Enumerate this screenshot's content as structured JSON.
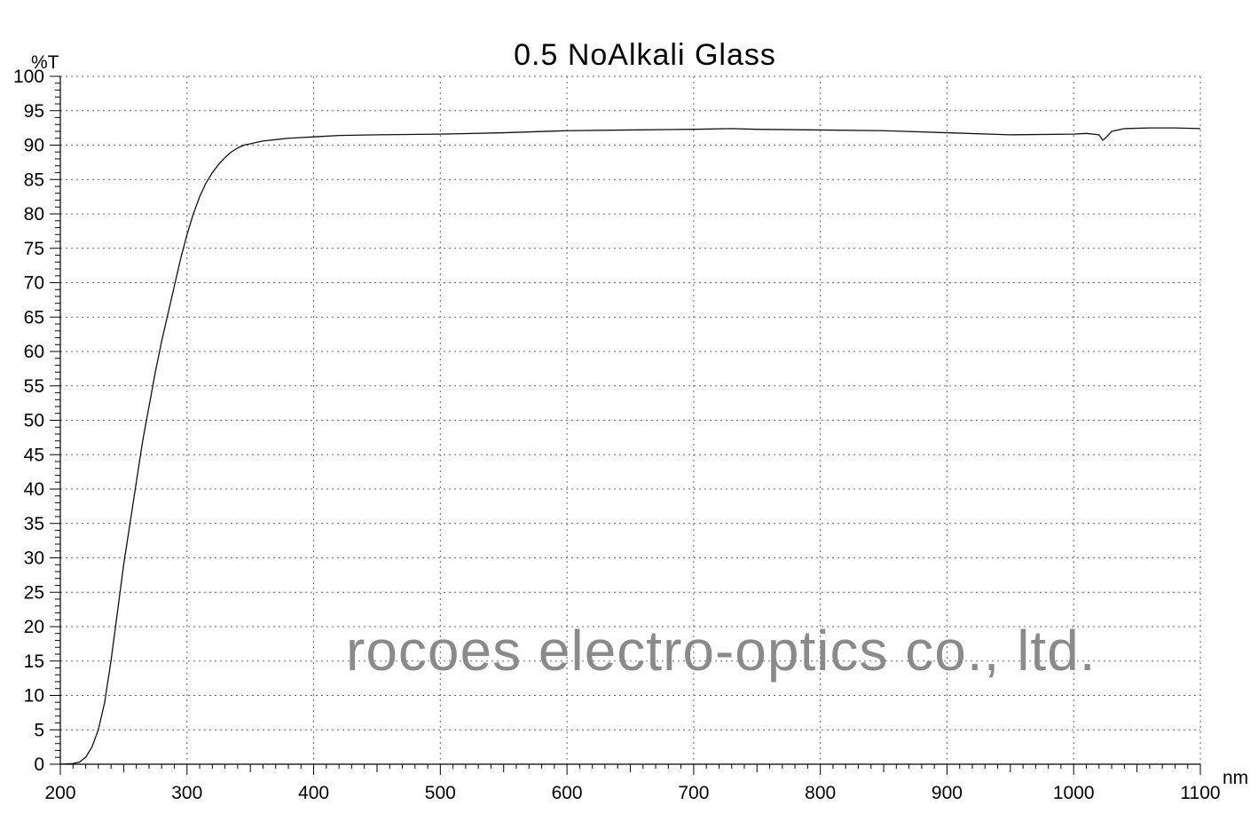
{
  "chart_data": {
    "type": "line",
    "title": "0.5 NoAlkali Glass",
    "xlabel": "nm",
    "ylabel": "%T",
    "xlim": [
      200,
      1100
    ],
    "ylim": [
      0,
      100
    ],
    "x_ticks": [
      "200",
      "300",
      "400",
      "500",
      "600",
      "700",
      "800",
      "900",
      "1000",
      "1100"
    ],
    "y_ticks": [
      "0",
      "5",
      "10",
      "15",
      "20",
      "25",
      "30",
      "35",
      "40",
      "45",
      "50",
      "55",
      "60",
      "65",
      "70",
      "75",
      "80",
      "85",
      "90",
      "95",
      "100"
    ],
    "grid": true,
    "legend": "none",
    "watermark": "rocoes electro-optics co., ltd.",
    "series": [
      {
        "x": [
          200,
          210,
          215,
          220,
          225,
          230,
          235,
          240,
          245,
          250,
          255,
          260,
          265,
          270,
          275,
          280,
          285,
          290,
          295,
          300,
          305,
          310,
          315,
          320,
          325,
          330,
          335,
          340,
          345,
          350,
          355,
          360,
          370,
          380,
          390,
          400,
          420,
          450,
          500,
          550,
          600,
          650,
          700,
          730,
          750,
          800,
          850,
          900,
          950,
          1000,
          1010,
          1020,
          1023,
          1026,
          1030,
          1040,
          1060,
          1080,
          1100
        ],
        "y": [
          0,
          0.1,
          0.3,
          1,
          2.5,
          5,
          9,
          15,
          22,
          29,
          35,
          41,
          47,
          52,
          57,
          61.5,
          65.5,
          69.5,
          73.5,
          77,
          80,
          82.5,
          84.5,
          86,
          87.2,
          88.2,
          89,
          89.6,
          90,
          90.2,
          90.4,
          90.6,
          90.8,
          91,
          91.1,
          91.2,
          91.4,
          91.5,
          91.6,
          91.8,
          92.1,
          92.2,
          92.3,
          92.4,
          92.3,
          92.2,
          92.1,
          91.8,
          91.5,
          91.6,
          91.7,
          91.5,
          90.7,
          91.2,
          92,
          92.4,
          92.5,
          92.5,
          92.4
        ]
      }
    ]
  }
}
